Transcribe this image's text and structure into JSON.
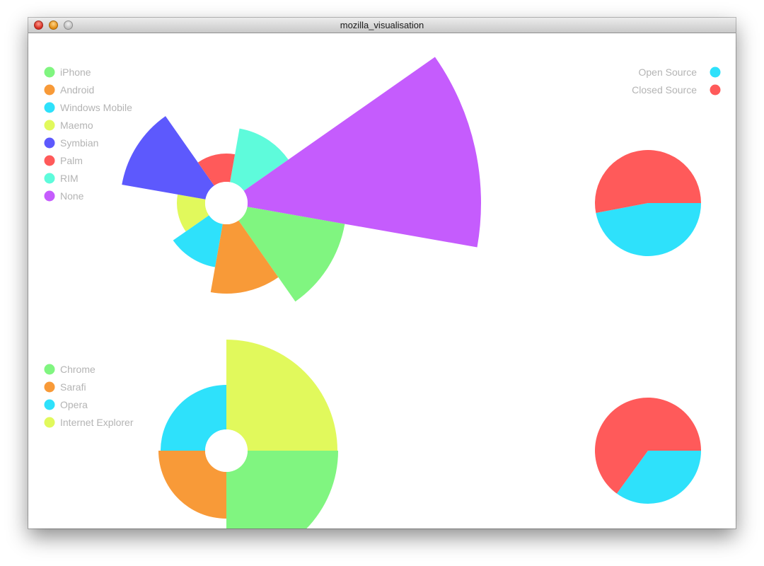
{
  "window": {
    "title": "mozilla_visualisation"
  },
  "chart_data": [
    {
      "type": "rose",
      "series": [
        {
          "name": "iPhone",
          "color": "#80f580",
          "value": 140
        },
        {
          "name": "Android",
          "color": "#f89a38",
          "value": 98
        },
        {
          "name": "Windows Mobile",
          "color": "#2ee1fb",
          "value": 62
        },
        {
          "name": "Maemo",
          "color": "#e1f95c",
          "value": 40
        },
        {
          "name": "Symbian",
          "color": "#5d59fd",
          "value": 120
        },
        {
          "name": "Palm",
          "color": "#ff5a5a",
          "value": 40
        },
        {
          "name": "RIM",
          "color": "#5efbdb",
          "value": 77
        },
        {
          "name": "None",
          "color": "#c55cfd",
          "value": 330
        }
      ]
    },
    {
      "type": "pie",
      "series": [
        {
          "name": "Open Source",
          "color": "#2ee1fb",
          "value": 47
        },
        {
          "name": "Closed Source",
          "color": "#ff5a5a",
          "value": 53
        }
      ]
    },
    {
      "type": "rose",
      "series": [
        {
          "name": "Chrome",
          "color": "#80f580",
          "value": 128
        },
        {
          "name": "Sarafi",
          "color": "#f89a38",
          "value": 66
        },
        {
          "name": "Opera",
          "color": "#2ee1fb",
          "value": 63
        },
        {
          "name": "Internet Explorer",
          "color": "#e1f95c",
          "value": 127
        }
      ]
    },
    {
      "type": "pie",
      "series": [
        {
          "name": "Open Source",
          "color": "#2ee1fb",
          "value": 35
        },
        {
          "name": "Closed Source",
          "color": "#ff5a5a",
          "value": 65
        }
      ]
    }
  ]
}
